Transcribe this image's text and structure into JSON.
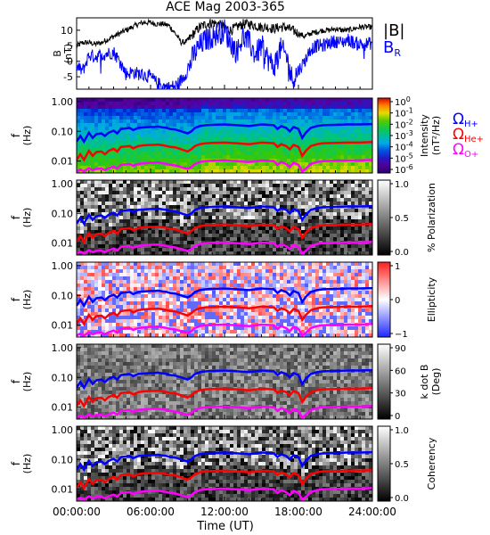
{
  "chart_data": {
    "type": "line",
    "title": "ACE Mag 2003-365",
    "time_axis": {
      "label": "Time (UT)",
      "range_hours": [
        0,
        24
      ],
      "ticks": [
        {
          "hour": 0,
          "label": "00:00:00"
        },
        {
          "hour": 6,
          "label": "06:00:00"
        },
        {
          "hour": 12,
          "label": "12:00:00"
        },
        {
          "hour": 18,
          "label": "18:00:00"
        },
        {
          "hour": 24,
          "label": "24:00:00"
        }
      ]
    },
    "colors": {
      "B_total": "#000000",
      "B_R": "#0000ff",
      "omega_H": "#0000ff",
      "omega_He": "#ff0000",
      "omega_O": "#ff00ff"
    },
    "field_panel": {
      "ylabel": "B",
      "yunit": "(nT)",
      "ylim": [
        -9,
        14
      ],
      "yticks": [
        10,
        5,
        0,
        -5
      ],
      "legend": {
        "total": "|B|",
        "radial": "BR"
      },
      "series": [
        {
          "name": "|B|",
          "x": [
            0,
            0.5,
            1,
            1.5,
            2,
            2.5,
            3,
            3.5,
            4,
            4.5,
            5,
            5.5,
            6,
            6.5,
            7,
            7.5,
            8,
            8.5,
            9,
            9.5,
            10,
            10.5,
            11,
            11.5,
            12,
            12.5,
            13,
            13.5,
            14,
            14.5,
            15,
            15.5,
            16,
            16.5,
            17,
            17.5,
            18,
            18.5,
            19,
            19.5,
            20,
            20.5,
            21,
            21.5,
            22,
            22.5,
            23,
            23.5,
            24
          ],
          "values": [
            5,
            6,
            6,
            5.5,
            6,
            7,
            8,
            9,
            10,
            11,
            12,
            12.5,
            12.5,
            12,
            12,
            11.5,
            9,
            6,
            6.5,
            9,
            11,
            12,
            12.5,
            12,
            11,
            10,
            11,
            12,
            12,
            11.5,
            11,
            11,
            10.5,
            11,
            11,
            10,
            9,
            8,
            9,
            9.5,
            10,
            10,
            10.5,
            10,
            10,
            10.5,
            11,
            11,
            11
          ]
        },
        {
          "name": "BR",
          "x": [
            0,
            0.5,
            1,
            1.5,
            2,
            2.5,
            3,
            3.5,
            4,
            4.5,
            5,
            5.5,
            6,
            6.5,
            7,
            7.5,
            8,
            8.5,
            9,
            9.5,
            10,
            10.5,
            11,
            11.5,
            12,
            12.5,
            13,
            13.5,
            14,
            14.5,
            15,
            15.5,
            16,
            16.5,
            17,
            17.5,
            18,
            18.5,
            19,
            19.5,
            20,
            20.5,
            21,
            21.5,
            22,
            22.5,
            23,
            23.5,
            24
          ],
          "values": [
            -2,
            -3,
            2,
            1.5,
            2,
            2.5,
            3,
            0,
            -4,
            -3.5,
            -4,
            -4.5,
            -5,
            -7,
            -8,
            -8.5,
            -8,
            -6,
            -3,
            2,
            5,
            7,
            8,
            9,
            10,
            6,
            3,
            8,
            6,
            2,
            5,
            1,
            -2,
            4,
            2,
            -6,
            -3,
            0,
            4,
            5,
            5,
            6,
            6.5,
            6,
            7,
            6,
            5.5,
            5.5,
            6
          ]
        }
      ]
    },
    "frequency_axis": {
      "label": "f",
      "unit": "(Hz)",
      "scale": "log",
      "range": [
        0.004,
        1.3
      ],
      "ticks": [
        {
          "value": 1.0,
          "label": "1.00"
        },
        {
          "value": 0.1,
          "label": "0.10"
        },
        {
          "value": 0.01,
          "label": "0.01"
        }
      ]
    },
    "gyrofrequency_curves": [
      {
        "name": "ΩH+",
        "x": [
          0,
          0.3,
          0.6,
          1,
          1.3,
          1.6,
          2,
          2.3,
          2.6,
          3,
          3.3,
          3.6,
          4,
          4.3,
          4.6,
          5,
          5.5,
          6,
          6.3,
          6.6,
          7,
          7.3,
          7.6,
          8,
          8.5,
          9,
          9.3,
          9.6,
          10,
          10.5,
          11,
          12,
          13,
          14,
          15,
          16,
          16.3,
          16.6,
          17,
          17.3,
          17.6,
          18,
          18.3,
          18.6,
          19,
          19.5,
          20,
          21,
          22,
          23,
          24
        ],
        "values": [
          0.045,
          0.07,
          0.045,
          0.09,
          0.06,
          0.08,
          0.085,
          0.07,
          0.09,
          0.105,
          0.085,
          0.12,
          0.125,
          0.13,
          0.11,
          0.13,
          0.135,
          0.14,
          0.14,
          0.145,
          0.135,
          0.13,
          0.12,
          0.115,
          0.1,
          0.085,
          0.1,
          0.13,
          0.15,
          0.16,
          0.165,
          0.17,
          0.16,
          0.15,
          0.17,
          0.16,
          0.12,
          0.15,
          0.13,
          0.1,
          0.14,
          0.12,
          0.06,
          0.09,
          0.13,
          0.15,
          0.16,
          0.165,
          0.17,
          0.17,
          0.175
        ]
      },
      {
        "name": "ΩHe+",
        "x": [
          0,
          0.3,
          0.6,
          1,
          1.3,
          1.6,
          2,
          2.3,
          2.6,
          3,
          3.3,
          3.6,
          4,
          4.3,
          4.6,
          5,
          5.5,
          6,
          6.3,
          6.6,
          7,
          7.3,
          7.6,
          8,
          8.5,
          9,
          9.3,
          9.6,
          10,
          10.5,
          11,
          12,
          13,
          14,
          15,
          16,
          16.3,
          16.6,
          17,
          17.3,
          17.6,
          18,
          18.3,
          18.6,
          19,
          19.5,
          20,
          21,
          22,
          23,
          24
        ],
        "values": [
          0.011,
          0.017,
          0.011,
          0.022,
          0.015,
          0.02,
          0.021,
          0.017,
          0.022,
          0.026,
          0.021,
          0.03,
          0.031,
          0.032,
          0.027,
          0.032,
          0.034,
          0.035,
          0.035,
          0.036,
          0.034,
          0.032,
          0.03,
          0.029,
          0.025,
          0.021,
          0.025,
          0.032,
          0.037,
          0.04,
          0.041,
          0.042,
          0.04,
          0.037,
          0.042,
          0.04,
          0.03,
          0.037,
          0.032,
          0.025,
          0.035,
          0.03,
          0.015,
          0.022,
          0.032,
          0.037,
          0.04,
          0.041,
          0.042,
          0.042,
          0.044
        ]
      },
      {
        "name": "ΩO+",
        "x": [
          0,
          0.3,
          0.6,
          1,
          1.3,
          1.6,
          2,
          2.3,
          2.6,
          3,
          3.3,
          3.6,
          4,
          4.3,
          4.6,
          5,
          5.5,
          6,
          6.3,
          6.6,
          7,
          7.3,
          7.6,
          8,
          8.5,
          9,
          9.3,
          9.6,
          10,
          10.5,
          11,
          12,
          13,
          14,
          15,
          16,
          16.3,
          16.6,
          17,
          17.3,
          17.6,
          18,
          18.3,
          18.6,
          19,
          19.5,
          20,
          21,
          22,
          23,
          24
        ],
        "values": [
          0.0045,
          0.0052,
          0.0045,
          0.0058,
          0.005,
          0.0055,
          0.0056,
          0.005,
          0.0058,
          0.0066,
          0.0056,
          0.0075,
          0.0078,
          0.008,
          0.007,
          0.008,
          0.0085,
          0.0088,
          0.0088,
          0.009,
          0.0085,
          0.008,
          0.0075,
          0.0072,
          0.0063,
          0.0055,
          0.0063,
          0.008,
          0.0093,
          0.01,
          0.0103,
          0.0105,
          0.01,
          0.0093,
          0.0105,
          0.01,
          0.0075,
          0.0093,
          0.008,
          0.0063,
          0.0088,
          0.0075,
          0.0045,
          0.0055,
          0.008,
          0.0093,
          0.01,
          0.0103,
          0.0105,
          0.0105,
          0.011
        ]
      }
    ],
    "gyro_legend": {
      "H": "ΩH+",
      "He": "ΩHe+",
      "O": "ΩO+"
    },
    "spectrogram_panels": [
      {
        "id": "intensity",
        "type": "heatmap",
        "colormap": "rainbow",
        "colorbar_label": "Intensity",
        "colorbar_unit": "(nT²/Hz)",
        "colorbar_ticks": [
          "10⁰",
          "10⁻¹",
          "10⁻²",
          "10⁻³",
          "10⁻⁴",
          "10⁻⁵",
          "10⁻⁶"
        ]
      },
      {
        "id": "polarization",
        "type": "heatmap",
        "colormap": "gray",
        "colorbar_label": "% Polarization",
        "colorbar_unit": "",
        "colorbar_ticks": [
          "1.0",
          "0.5",
          "0.0"
        ]
      },
      {
        "id": "ellipticity",
        "type": "heatmap",
        "colormap": "bwr",
        "colorbar_label": "Ellipticity",
        "colorbar_unit": "",
        "colorbar_ticks": [
          "1",
          "0",
          "−1"
        ]
      },
      {
        "id": "kdotb",
        "type": "heatmap",
        "colormap": "gray",
        "colorbar_label": "k dot B",
        "colorbar_unit": "(Deg)",
        "colorbar_ticks": [
          "90",
          "60",
          "30",
          "0"
        ]
      },
      {
        "id": "coherency",
        "type": "heatmap",
        "colormap": "gray",
        "colorbar_label": "Coherency",
        "colorbar_unit": "",
        "colorbar_ticks": [
          "1.0",
          "0.5",
          "0.0"
        ]
      }
    ]
  }
}
